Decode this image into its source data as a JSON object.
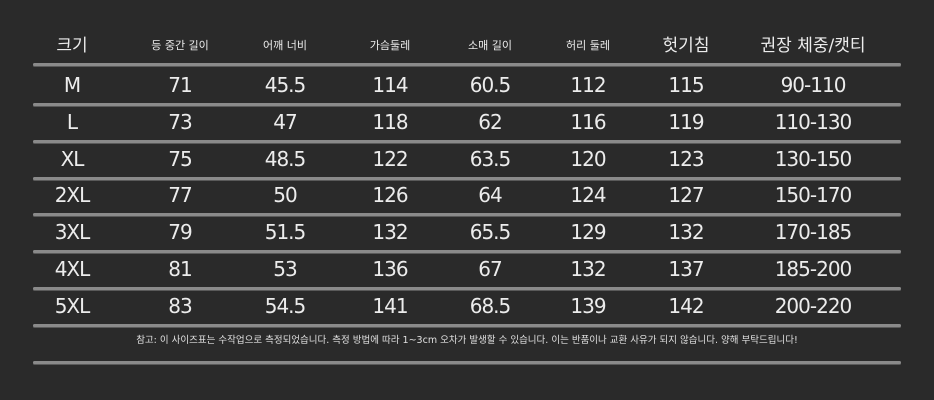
{
  "headers": [
    "크기",
    "등 중간 길이",
    "어깨 너비",
    "가슴둘레",
    "소매 길이",
    "허리 둘레",
    "헛기침",
    "권장 체중/캣티"
  ],
  "rows": [
    [
      "M",
      "71",
      "45.5",
      "114",
      "60.5",
      "112",
      "115",
      "90-110"
    ],
    [
      "L",
      "73",
      "47",
      "118",
      "62",
      "116",
      "119",
      "110-130"
    ],
    [
      "XL",
      "75",
      "48.5",
      "122",
      "63.5",
      "120",
      "123",
      "130-150"
    ],
    [
      "2XL",
      "77",
      "50",
      "126",
      "64",
      "124",
      "127",
      "150-170"
    ],
    [
      "3XL",
      "79",
      "51.5",
      "132",
      "65.5",
      "129",
      "132",
      "170-185"
    ],
    [
      "4XL",
      "81",
      "53",
      "136",
      "67",
      "132",
      "137",
      "185-200"
    ],
    [
      "5XL",
      "83",
      "54.5",
      "141",
      "68.5",
      "139",
      "142",
      "200-220"
    ]
  ],
  "note": "참고: 이 사이즈표는 수작업으로 측정되었습니다. 측정 방법에 따라 1~3cm 오차가 발생할 수 있습니다. 이는 반품이나 교환 사유가 되지 않습니다. 양해 부탁드립니다!",
  "colors": {
    "background": "#2a2a2a",
    "text": "#ececec",
    "divider": "#8a8a8a"
  }
}
